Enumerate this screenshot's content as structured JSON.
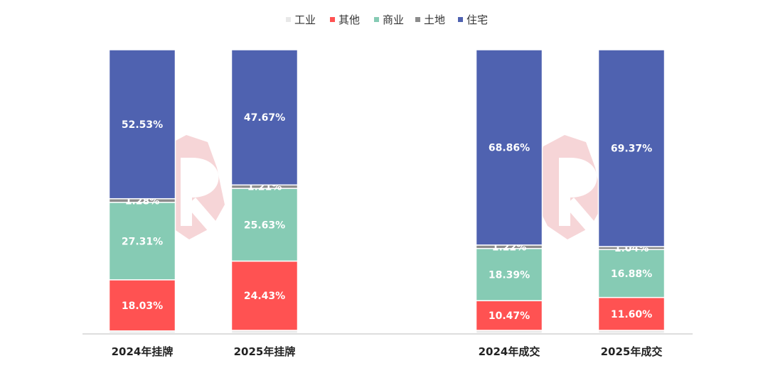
{
  "chart_data": {
    "type": "bar",
    "stacked": true,
    "percent": true,
    "categories": [
      "2024年挂牌",
      "2025年挂牌",
      "2024年成交",
      "2025年成交"
    ],
    "series": [
      {
        "name": "工业",
        "color": "#e8e8e8",
        "values": [
          0.8,
          1.0,
          1.0,
          1.0
        ]
      },
      {
        "name": "其他",
        "color": "#ff5252",
        "values": [
          18.03,
          24.43,
          10.47,
          11.6
        ],
        "labels": [
          "18.03%",
          "24.43%",
          "10.47%",
          "11.60%"
        ]
      },
      {
        "name": "商业",
        "color": "#86cbb4",
        "values": [
          27.31,
          25.63,
          18.39,
          16.88
        ],
        "labels": [
          "27.31%",
          "25.63%",
          "18.39%",
          "16.88%"
        ]
      },
      {
        "name": "土地",
        "color": "#8c8c8c",
        "values": [
          1.28,
          1.21,
          1.22,
          1.04
        ],
        "labels": [
          "1.28%",
          "1.21%",
          "1.22%",
          "1.04%"
        ]
      },
      {
        "name": "住宅",
        "color": "#4f62b0",
        "values": [
          52.53,
          47.67,
          68.86,
          69.37
        ],
        "labels": [
          "52.53%",
          "47.67%",
          "68.86%",
          "69.37%"
        ]
      }
    ],
    "ylim": [
      0,
      100
    ],
    "legend_position": "top",
    "grid": false
  }
}
